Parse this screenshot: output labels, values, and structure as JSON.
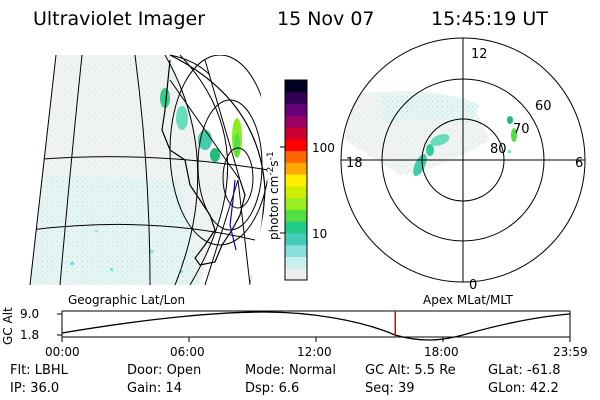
{
  "header": {
    "title": "Ultraviolet Imager",
    "date": "15 Nov 07",
    "time": "15:45:19 UT"
  },
  "colorbar": {
    "label": "photon cm-2s-1",
    "label_main": "photon cm",
    "label_sup1": "-2",
    "label_s": "s",
    "label_sup2": "-1",
    "ticks": [
      "100",
      "10"
    ],
    "colors": [
      "#eeeeee",
      "#c8eeee",
      "#88dddd",
      "#44ccbb",
      "#22cc88",
      "#55dd44",
      "#99ee22",
      "#ccee00",
      "#ffee00",
      "#ffaa00",
      "#ff6600",
      "#ff0000",
      "#cc0033",
      "#990066",
      "#660077",
      "#330055",
      "#000022"
    ]
  },
  "polar": {
    "labels": {
      "top": "12",
      "bottom": "0",
      "left": "18",
      "right": "6"
    },
    "lat_labels": [
      "60",
      "70",
      "80"
    ]
  },
  "panels": {
    "left_caption": "Geographic Lat/Lon",
    "right_caption": "Apex MLat/MLT"
  },
  "altitude_plot": {
    "ylabel": "GC Alt",
    "yticks": [
      "9.0",
      "1.8"
    ],
    "xticks": [
      "00:00",
      "06:00",
      "12:00",
      "18:00",
      "23:59"
    ],
    "current_time_fraction": 0.656
  },
  "footer": {
    "row1": [
      {
        "label": "Flt:",
        "value": "LBHL"
      },
      {
        "label": "Door:",
        "value": "Open"
      },
      {
        "label": "Mode:",
        "value": "Normal"
      },
      {
        "label": "GC Alt:",
        "value": "5.5 Re"
      },
      {
        "label": "GLat:",
        "value": "-61.8"
      }
    ],
    "row2": [
      {
        "label": "IP:",
        "value": "36.0"
      },
      {
        "label": "Gain:",
        "value": "14"
      },
      {
        "label": "Dsp:",
        "value": "6.6"
      },
      {
        "label": "Seq:",
        "value": "39"
      },
      {
        "label": "GLon:",
        "value": "42.2"
      }
    ]
  }
}
